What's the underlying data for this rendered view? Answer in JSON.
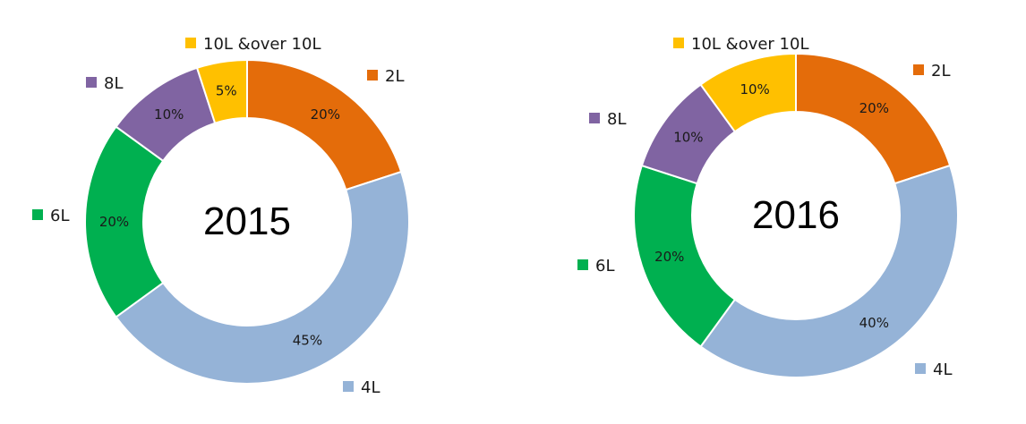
{
  "colors": {
    "2L": "#E46C0A",
    "4L": "#95B3D7",
    "6L": "#00B050",
    "8L": "#8064A2",
    "10L &over 10L": "#FFC000"
  },
  "chart_data": [
    {
      "type": "pie",
      "style": "donut",
      "title": "2015",
      "categories": [
        "2L",
        "4L",
        "6L",
        "8L",
        "10L &over 10L"
      ],
      "values": [
        20,
        45,
        20,
        10,
        5
      ],
      "labels": [
        "20%",
        "45%",
        "20%",
        "10%",
        "5%"
      ],
      "unit": "%"
    },
    {
      "type": "pie",
      "style": "donut",
      "title": "2016",
      "categories": [
        "2L",
        "4L",
        "6L",
        "8L",
        "10L &over 10L"
      ],
      "values": [
        20,
        40,
        20,
        10,
        10
      ],
      "labels": [
        "20%",
        "40%",
        "20%",
        "10%",
        "10%"
      ],
      "unit": "%"
    }
  ]
}
